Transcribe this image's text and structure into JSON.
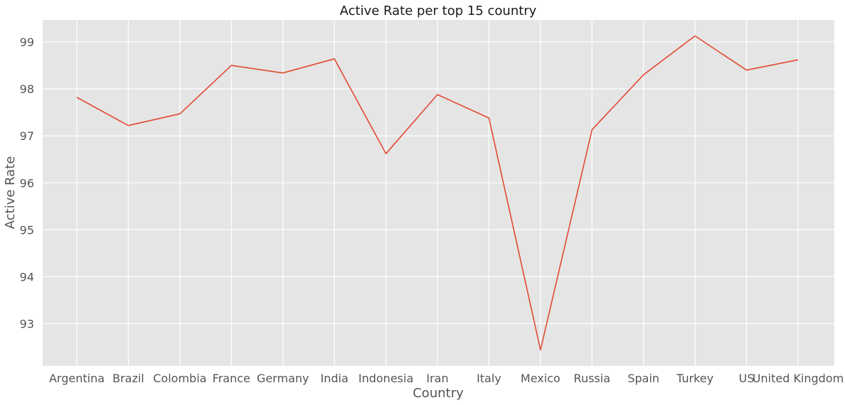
{
  "chart_data": {
    "type": "line",
    "title": "Active Rate per top 15 country",
    "xlabel": "Country",
    "ylabel": "Active Rate",
    "categories": [
      "Argentina",
      "Brazil",
      "Colombia",
      "France",
      "Germany",
      "India",
      "Indonesia",
      "Iran",
      "Italy",
      "Mexico",
      "Russia",
      "Spain",
      "Turkey",
      "US",
      "United Kingdom"
    ],
    "values": [
      97.82,
      97.22,
      97.47,
      98.5,
      98.34,
      98.64,
      96.62,
      97.88,
      97.38,
      92.44,
      97.13,
      98.3,
      99.13,
      98.4,
      98.62
    ],
    "yticks": [
      93,
      94,
      95,
      96,
      97,
      98,
      99
    ],
    "ylim": [
      92.1,
      99.47
    ],
    "grid": true,
    "line_color": "#e24a33",
    "background_color": "#e5e5e5",
    "grid_color": "#ffffff"
  }
}
